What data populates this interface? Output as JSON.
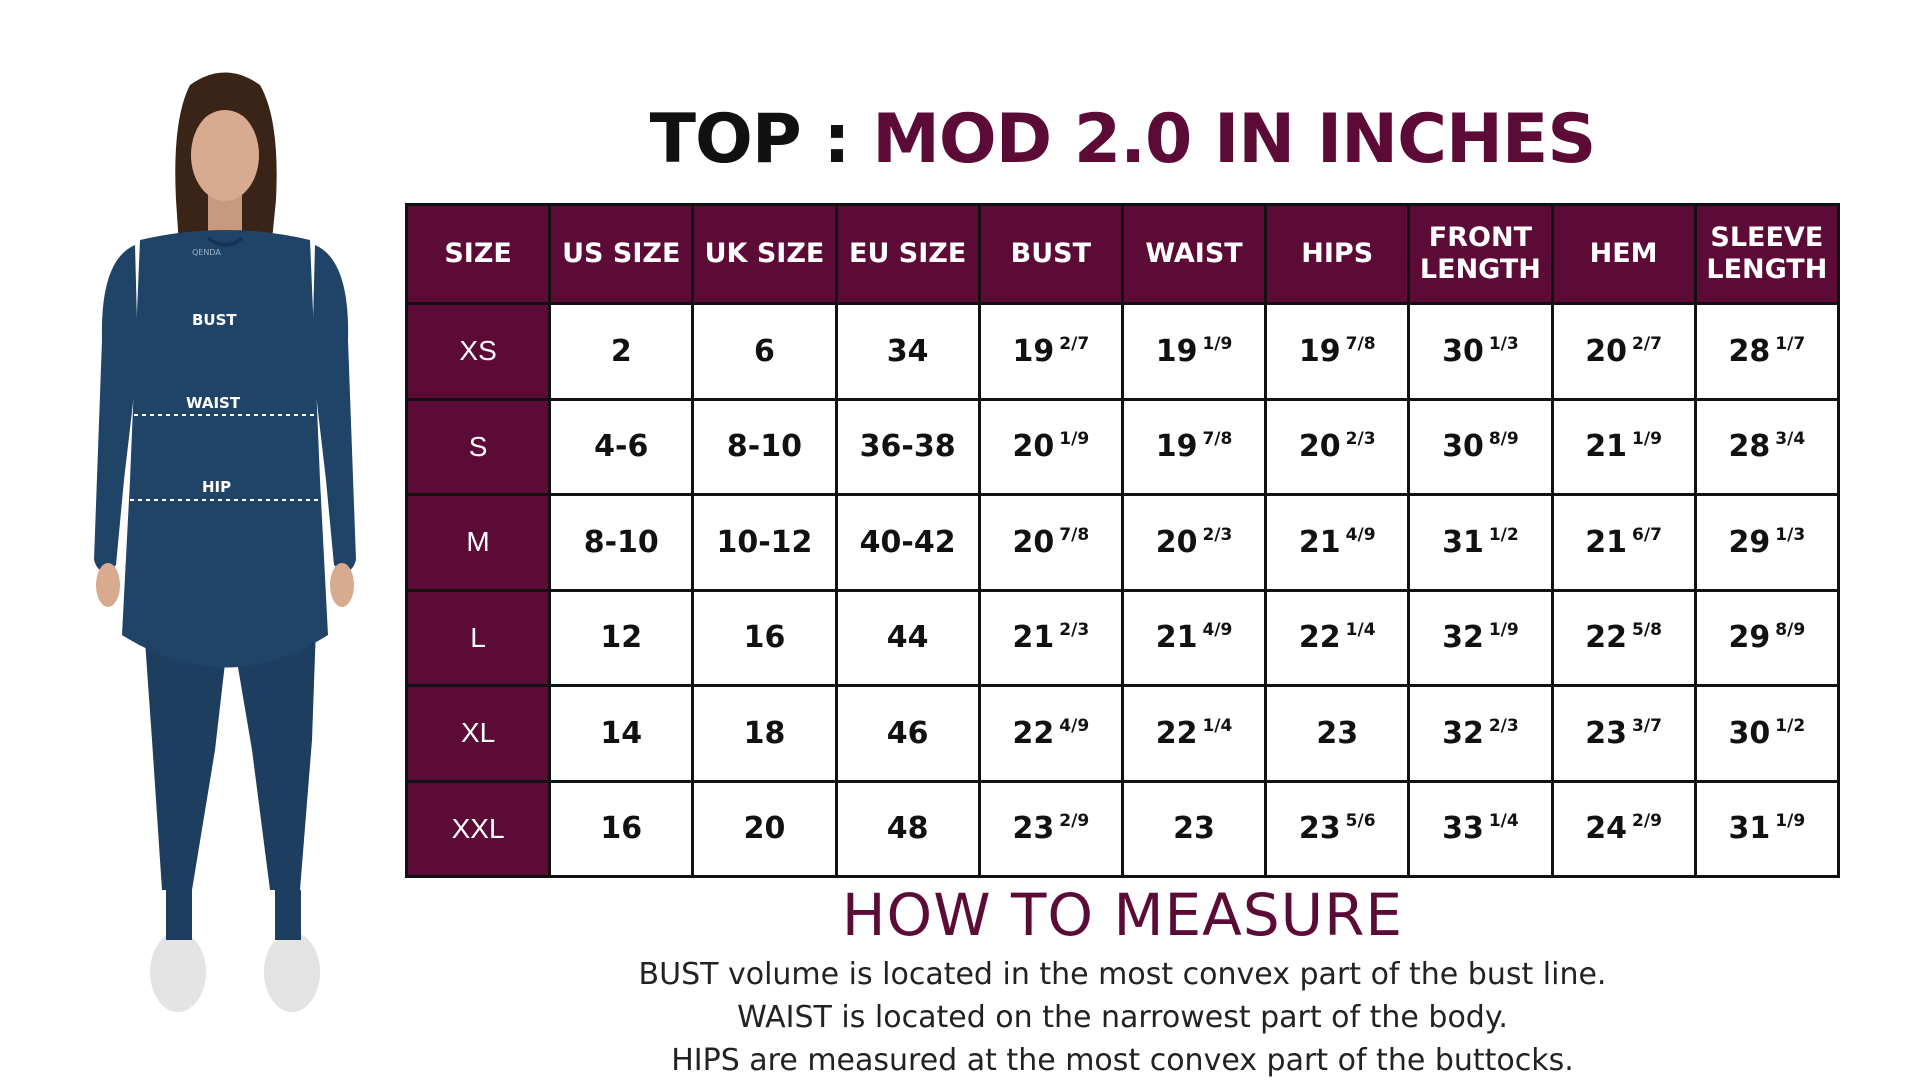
{
  "title": {
    "part1": "TOP :",
    "part2": "MOD 2.0 IN INCHES"
  },
  "colors": {
    "accent": "#5c0b37",
    "garment": "#1f4467",
    "text": "#111111"
  },
  "model_figure": {
    "brand_text": "QENDA",
    "labels": {
      "bust": "BUST",
      "waist": "WAIST",
      "hip": "HIP"
    }
  },
  "table": {
    "headers": [
      "SIZE",
      "US SIZE",
      "UK SIZE",
      "EU SIZE",
      "BUST",
      "WAIST",
      "HIPS",
      "FRONT LENGTH",
      "HEM",
      "SLEEVE LENGTH"
    ],
    "rows": [
      [
        "XS",
        "2",
        "6",
        "34",
        "19 2/7",
        "19 1/9",
        "19 7/8",
        "30 1/3",
        "20 2/7",
        "28 1/7"
      ],
      [
        "S",
        "4-6",
        "8-10",
        "36-38",
        "20 1/9",
        "19 7/8",
        "20 2/3",
        "30 8/9",
        "21 1/9",
        "28 3/4"
      ],
      [
        "M",
        "8-10",
        "10-12",
        "40-42",
        "20 7/8",
        "20 2/3",
        "21 4/9",
        "31 1/2",
        "21 6/7",
        "29 1/3"
      ],
      [
        "L",
        "12",
        "16",
        "44",
        "21 2/3",
        "21 4/9",
        "22 1/4",
        "32 1/9",
        "22 5/8",
        "29 8/9"
      ],
      [
        "XL",
        "14",
        "18",
        "46",
        "22 4/9",
        "22 1/4",
        "23",
        "32 2/3",
        "23 3/7",
        "30 1/2"
      ],
      [
        "XXL",
        "16",
        "20",
        "48",
        "23 2/9",
        "23",
        "23 5/6",
        "33 1/4",
        "24 2/9",
        "31 1/9"
      ]
    ]
  },
  "how_to": {
    "heading": "HOW TO MEASURE",
    "lines": [
      "BUST volume is located in the most convex part of the bust line.",
      "WAIST is located on the narrowest part of the body.",
      "HIPS are measured at the most convex part of the buttocks."
    ]
  }
}
